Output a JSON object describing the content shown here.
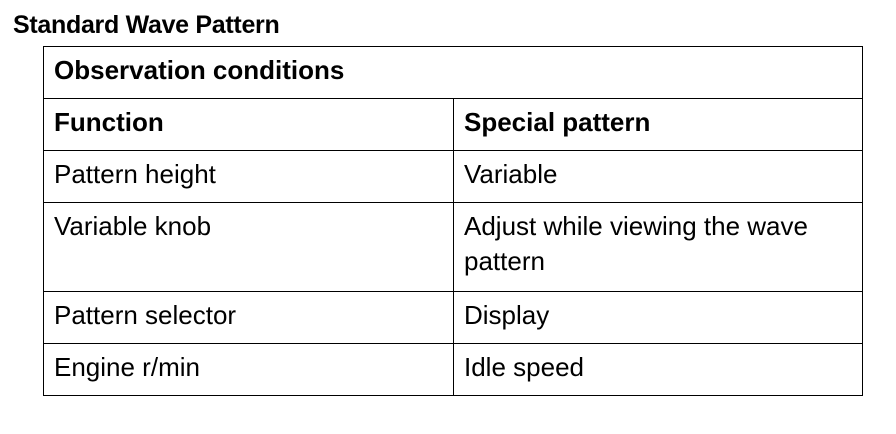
{
  "title": "Standard Wave Pattern",
  "table": {
    "caption_row": "Observation conditions",
    "headers": [
      "Function",
      "Special pattern"
    ],
    "rows": [
      [
        "Pattern height",
        "Variable"
      ],
      [
        "Variable knob",
        "Adjust while viewing the wave pattern"
      ],
      [
        "Pattern selector",
        "Display"
      ],
      [
        "Engine r/min",
        "Idle speed"
      ]
    ]
  }
}
